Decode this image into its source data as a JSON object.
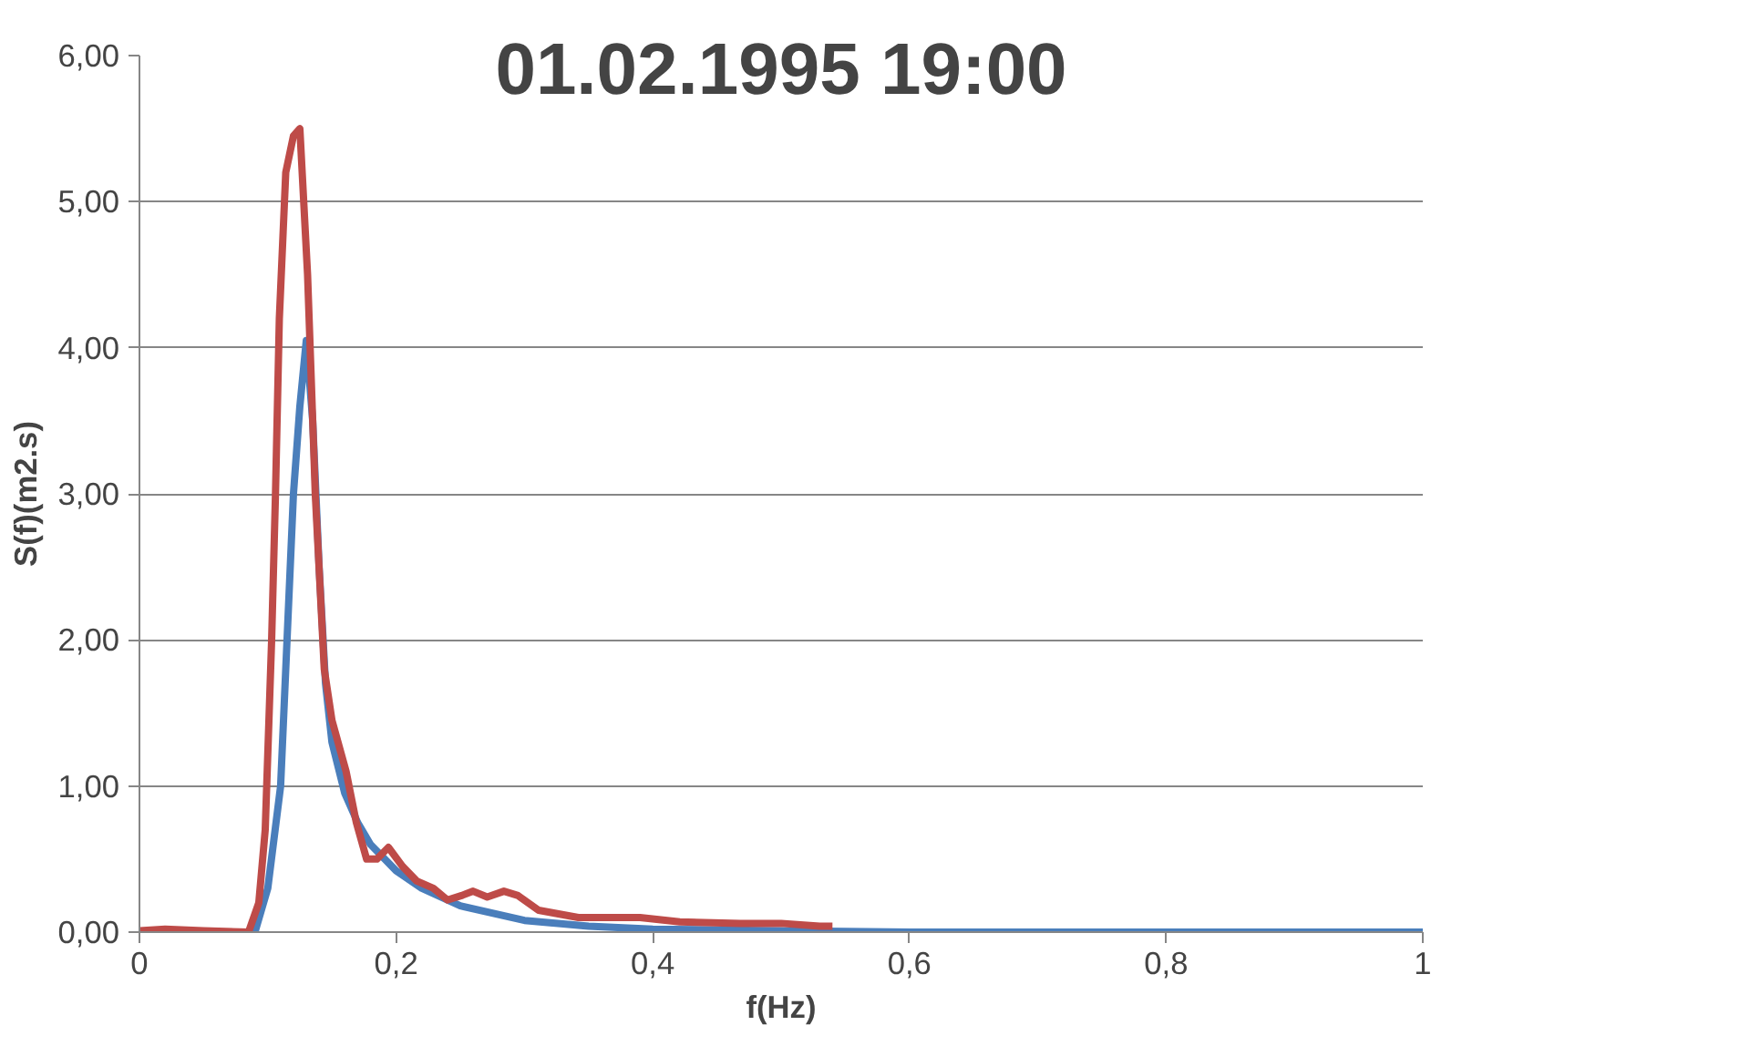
{
  "chart_data": {
    "type": "line",
    "title": "01.02.1995 19:00",
    "xlabel": "f(Hz)",
    "ylabel": "S(f)(m2.s)",
    "xlim": [
      0,
      1
    ],
    "ylim": [
      0,
      6
    ],
    "xticks": [
      0,
      {
        "value": 0.2,
        "label": "0,2"
      },
      {
        "value": 0.4,
        "label": "0,4"
      },
      {
        "value": 0.6,
        "label": "0,6"
      },
      {
        "value": 0.8,
        "label": "0,8"
      },
      1
    ],
    "yticks": [
      {
        "value": 0,
        "label": "0,00"
      },
      {
        "value": 1,
        "label": "1,00"
      },
      {
        "value": 2,
        "label": "2,00"
      },
      {
        "value": 3,
        "label": "3,00"
      },
      {
        "value": 4,
        "label": "4,00"
      },
      {
        "value": 5,
        "label": "5,00"
      },
      {
        "value": 6,
        "label": "6,00"
      }
    ],
    "grid": "y",
    "marker": "none",
    "line_style": "solid",
    "series": [
      {
        "color": "#4a7ebb",
        "x": [
          0,
          0.05,
          0.09,
          0.1,
          0.11,
          0.115,
          0.12,
          0.125,
          0.13,
          0.135,
          0.14,
          0.145,
          0.15,
          0.16,
          0.17,
          0.18,
          0.2,
          0.22,
          0.25,
          0.3,
          0.35,
          0.4,
          0.5,
          0.6,
          0.8,
          1
        ],
        "values": [
          0,
          0,
          0,
          0.3,
          1.0,
          2.0,
          3.0,
          3.6,
          4.05,
          3.5,
          2.5,
          1.7,
          1.3,
          0.95,
          0.75,
          0.6,
          0.42,
          0.3,
          0.18,
          0.08,
          0.04,
          0.02,
          0.01,
          0,
          0,
          0
        ]
      },
      {
        "color": "#be4b48",
        "x": [
          0,
          0.02,
          0.05,
          0.085,
          0.093,
          0.098,
          0.103,
          0.106,
          0.109,
          0.114,
          0.12,
          0.125,
          0.131,
          0.137,
          0.144,
          0.15,
          0.161,
          0.169,
          0.177,
          0.185,
          0.194,
          0.205,
          0.216,
          0.229,
          0.24,
          0.251,
          0.26,
          0.271,
          0.284,
          0.295,
          0.311,
          0.342,
          0.39,
          0.421,
          0.468,
          0.5,
          0.53,
          0.54
        ],
        "values": [
          0.01,
          0.02,
          0.01,
          0.0,
          0.2,
          0.7,
          2.0,
          3.0,
          4.2,
          5.2,
          5.45,
          5.5,
          4.5,
          3.0,
          1.8,
          1.45,
          1.1,
          0.75,
          0.5,
          0.5,
          0.58,
          0.45,
          0.35,
          0.3,
          0.22,
          0.25,
          0.28,
          0.24,
          0.28,
          0.25,
          0.15,
          0.1,
          0.1,
          0.07,
          0.06,
          0.06,
          0.04,
          0.04
        ]
      }
    ]
  }
}
